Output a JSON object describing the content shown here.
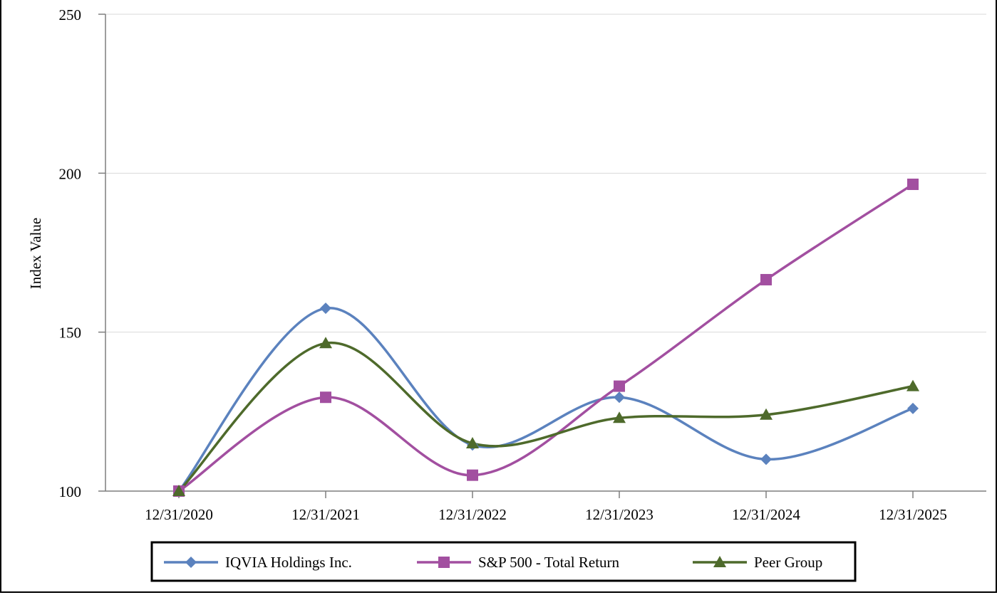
{
  "chart_data": {
    "type": "line",
    "title": "",
    "xlabel": "",
    "ylabel": "Index Value",
    "ylim": [
      100,
      250
    ],
    "yticks": [
      100,
      150,
      200,
      250
    ],
    "grid": true,
    "legend_position": "bottom",
    "categories": [
      "12/31/2020",
      "12/31/2021",
      "12/31/2022",
      "12/31/2023",
      "12/31/2024",
      "12/31/2025"
    ],
    "series": [
      {
        "name": "IQVIA Holdings Inc.",
        "color": "#5B82BE",
        "marker": "diamond",
        "values": [
          100,
          157.5,
          114.5,
          129.5,
          110,
          126
        ]
      },
      {
        "name": "S&P 500 - Total Return",
        "color": "#A24FA0",
        "marker": "square",
        "values": [
          100,
          129.5,
          105,
          133,
          166.5,
          196.5
        ]
      },
      {
        "name": "Peer Group",
        "color": "#4E6A2B",
        "marker": "triangle",
        "values": [
          100,
          146.5,
          115,
          123,
          124,
          133
        ]
      }
    ]
  }
}
